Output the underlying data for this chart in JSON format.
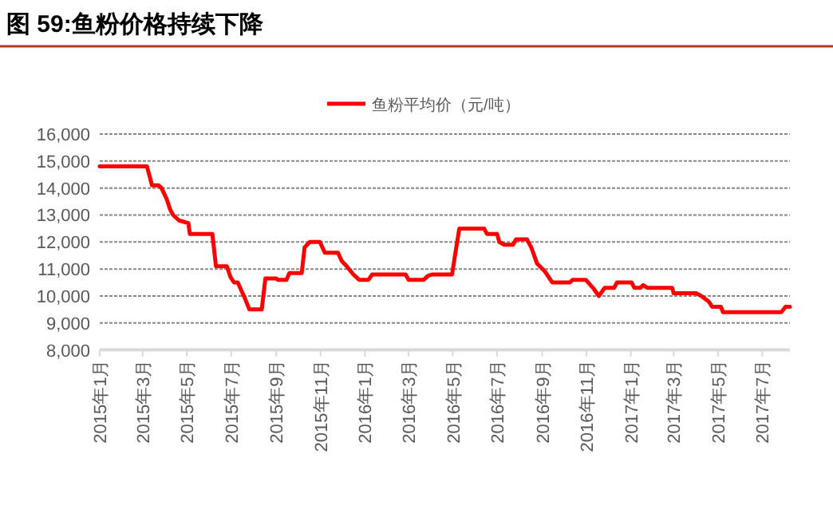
{
  "chart_data": {
    "type": "line",
    "title": "图 59:鱼粉价格持续下降",
    "x": [
      "2015-01-01",
      "2015-03-07",
      "2015-03-14",
      "2015-03-23",
      "2015-03-27",
      "2015-04-03",
      "2015-04-08",
      "2015-04-12",
      "2015-04-20",
      "2015-05-03",
      "2015-05-05",
      "2015-06-05",
      "2015-06-10",
      "2015-06-25",
      "2015-06-30",
      "2015-07-05",
      "2015-07-10",
      "2015-07-15",
      "2015-07-20",
      "2015-07-26",
      "2015-08-12",
      "2015-08-17",
      "2015-09-01",
      "2015-09-03",
      "2015-09-15",
      "2015-09-19",
      "2015-10-06",
      "2015-10-10",
      "2015-10-17",
      "2015-10-31",
      "2015-11-07",
      "2015-11-25",
      "2015-11-30",
      "2015-12-07",
      "2015-12-16",
      "2015-12-24",
      "2016-01-06",
      "2016-01-11",
      "2016-02-26",
      "2016-03-01",
      "2016-03-22",
      "2016-03-28",
      "2016-04-03",
      "2016-04-30",
      "2016-05-04",
      "2016-05-10",
      "2016-06-13",
      "2016-06-17",
      "2016-07-01",
      "2016-07-04",
      "2016-07-11",
      "2016-07-23",
      "2016-07-27",
      "2016-08-11",
      "2016-08-17",
      "2016-08-25",
      "2016-09-05",
      "2016-09-15",
      "2016-10-09",
      "2016-10-13",
      "2016-10-31",
      "2016-11-10",
      "2016-11-18",
      "2016-11-26",
      "2016-12-09",
      "2016-12-13",
      "2017-01-02",
      "2017-01-06",
      "2017-01-14",
      "2017-01-18",
      "2017-01-24",
      "2017-02-27",
      "2017-03-01",
      "2017-04-01",
      "2017-04-08",
      "2017-04-18",
      "2017-04-23",
      "2017-05-05",
      "2017-05-08",
      "2017-07-27",
      "2017-08-02",
      "2017-08-08"
    ],
    "series": [
      {
        "name": "鱼粉平均价（元/吨）",
        "color": "#ff0000",
        "values": [
          14800,
          14800,
          14100,
          14100,
          14000,
          13600,
          13200,
          13000,
          12800,
          12700,
          12300,
          12300,
          11100,
          11100,
          10700,
          10500,
          10500,
          10200,
          9900,
          9500,
          9500,
          10650,
          10650,
          10600,
          10600,
          10850,
          10850,
          11800,
          12000,
          12000,
          11600,
          11600,
          11300,
          11100,
          10800,
          10600,
          10600,
          10800,
          10800,
          10600,
          10600,
          10750,
          10800,
          10800,
          11500,
          12500,
          12500,
          12300,
          12300,
          12000,
          11900,
          11900,
          12100,
          12100,
          11800,
          11200,
          10900,
          10500,
          10500,
          10600,
          10600,
          10300,
          10000,
          10300,
          10300,
          10500,
          10500,
          10300,
          10300,
          10400,
          10300,
          10300,
          10100,
          10100,
          10000,
          9800,
          9600,
          9600,
          9400,
          9400,
          9600,
          9600
        ]
      }
    ],
    "xlim": [
      "2015-01-01",
      "2017-08-08"
    ],
    "xticks": [
      {
        "value": "2015-01",
        "label": "2015年1月"
      },
      {
        "value": "2015-03",
        "label": "2015年3月"
      },
      {
        "value": "2015-05",
        "label": "2015年5月"
      },
      {
        "value": "2015-07",
        "label": "2015年7月"
      },
      {
        "value": "2015-09",
        "label": "2015年9月"
      },
      {
        "value": "2015-11",
        "label": "2015年11月"
      },
      {
        "value": "2016-01",
        "label": "2016年1月"
      },
      {
        "value": "2016-03",
        "label": "2016年3月"
      },
      {
        "value": "2016-05",
        "label": "2016年5月"
      },
      {
        "value": "2016-07",
        "label": "2016年7月"
      },
      {
        "value": "2016-09",
        "label": "2016年9月"
      },
      {
        "value": "2016-11",
        "label": "2016年11月"
      },
      {
        "value": "2017-01",
        "label": "2017年1月"
      },
      {
        "value": "2017-03",
        "label": "2017年3月"
      },
      {
        "value": "2017-05",
        "label": "2017年5月"
      },
      {
        "value": "2017-07",
        "label": "2017年7月"
      }
    ],
    "ylim": [
      8000,
      16000
    ],
    "yticks": [
      {
        "value": 8000,
        "label": "8,000"
      },
      {
        "value": 9000,
        "label": "9,000"
      },
      {
        "value": 10000,
        "label": "10,000"
      },
      {
        "value": 11000,
        "label": "11,000"
      },
      {
        "value": 12000,
        "label": "12,000"
      },
      {
        "value": 13000,
        "label": "13,000"
      },
      {
        "value": 14000,
        "label": "14,000"
      },
      {
        "value": 15000,
        "label": "15,000"
      },
      {
        "value": 16000,
        "label": "16,000"
      }
    ],
    "grid": "y",
    "legend": "top",
    "marker": "none",
    "line_style": "solid"
  }
}
